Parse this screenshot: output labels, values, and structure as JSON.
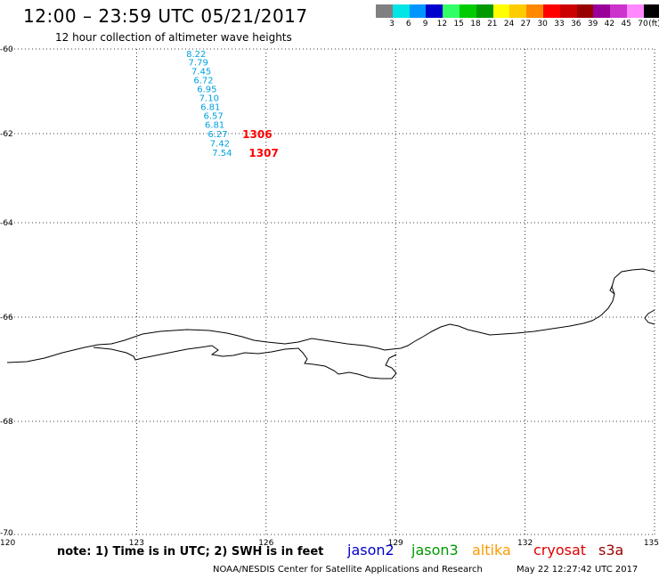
{
  "header": {
    "title": "12:00 – 23:59 UTC 05/21/2017",
    "subtitle": "12 hour collection of altimeter wave heights"
  },
  "legend": {
    "unit": "(ft)",
    "bins": [
      {
        "label": "3",
        "color": "#808080"
      },
      {
        "label": "6",
        "color": "#00e5e5"
      },
      {
        "label": "9",
        "color": "#0096ff"
      },
      {
        "label": "12",
        "color": "#0000cc"
      },
      {
        "label": "15",
        "color": "#33ff66"
      },
      {
        "label": "18",
        "color": "#00cc00"
      },
      {
        "label": "21",
        "color": "#009900"
      },
      {
        "label": "24",
        "color": "#ffff00"
      },
      {
        "label": "27",
        "color": "#ffcc00"
      },
      {
        "label": "30",
        "color": "#ff8800"
      },
      {
        "label": "33",
        "color": "#ff0000"
      },
      {
        "label": "36",
        "color": "#cc0000"
      },
      {
        "label": "39",
        "color": "#990000"
      },
      {
        "label": "42",
        "color": "#990099"
      },
      {
        "label": "45",
        "color": "#cc33cc"
      },
      {
        "label": "70",
        "color": "#ff88ff"
      },
      {
        "label": "",
        "color": "#000000"
      }
    ]
  },
  "map": {
    "lon_range": [
      120,
      135
    ],
    "lat_range": [
      -70,
      -60
    ],
    "lon_ticks": [
      "120",
      "123",
      "126",
      "129",
      "132",
      "135"
    ],
    "lat_ticks": [
      "-60",
      "-62",
      "-64",
      "-66",
      "-68",
      "-70"
    ],
    "grid_lon": [
      123,
      126,
      129,
      132,
      135
    ],
    "grid_lat": [
      -62,
      -64,
      -66,
      -68
    ],
    "wave_heights": [
      {
        "value": "8.22",
        "lon": 124.15,
        "lat": -60.1,
        "color": "#00a0e0"
      },
      {
        "value": "7.79",
        "lon": 124.2,
        "lat": -60.31,
        "color": "#00a0e0"
      },
      {
        "value": "7.45",
        "lon": 124.27,
        "lat": -60.52,
        "color": "#00a0e0"
      },
      {
        "value": "6.72",
        "lon": 124.32,
        "lat": -60.73,
        "color": "#00a0e0"
      },
      {
        "value": "6.95",
        "lon": 124.4,
        "lat": -60.94,
        "color": "#00a0e0"
      },
      {
        "value": "7.10",
        "lon": 124.45,
        "lat": -61.15,
        "color": "#00a0e0"
      },
      {
        "value": "6.81",
        "lon": 124.48,
        "lat": -61.36,
        "color": "#00a0e0"
      },
      {
        "value": "6.57",
        "lon": 124.55,
        "lat": -61.57,
        "color": "#00a0e0"
      },
      {
        "value": "6.81",
        "lon": 124.58,
        "lat": -61.78,
        "color": "#00a0e0"
      },
      {
        "value": "6.27",
        "lon": 124.65,
        "lat": -62.0,
        "color": "#00a0e0"
      },
      {
        "value": "7.42",
        "lon": 124.7,
        "lat": -62.21,
        "color": "#00a0e0"
      },
      {
        "value": "7.54",
        "lon": 124.75,
        "lat": -62.42,
        "color": "#00a0e0"
      }
    ],
    "pass_times": [
      {
        "value": "1306",
        "lon": 125.45,
        "lat": -62.0,
        "color": "#ff0000"
      },
      {
        "value": "1307",
        "lon": 125.6,
        "lat": -62.42,
        "color": "#ff0000"
      }
    ]
  },
  "footer": {
    "note": "note: 1) Time is in UTC; 2) SWH is in feet",
    "satellites": [
      {
        "name": "jason2",
        "color": "#0000cc"
      },
      {
        "name": "jason3",
        "color": "#009900"
      },
      {
        "name": "altika",
        "color": "#ff9900"
      },
      {
        "name": "cryosat",
        "color": "#dd0000"
      },
      {
        "name": "s3a",
        "color": "#990000"
      }
    ],
    "credit": "NOAA/NESDIS Center for Satellite Applications and Research",
    "timestamp": "May 22 12:27:42 UTC 2017"
  }
}
